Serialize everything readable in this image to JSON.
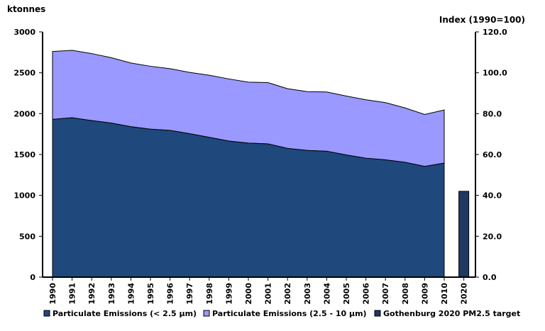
{
  "chart_data": {
    "type": "area",
    "left_axis_unit": "ktonnes",
    "right_axis_unit": "Index (1990=100)",
    "left_ylim": [
      0,
      3000
    ],
    "left_ticks": [
      "0",
      "500",
      "1000",
      "1500",
      "2000",
      "2500",
      "3000"
    ],
    "right_ylim": [
      0,
      120
    ],
    "right_ticks": [
      "0.0",
      "20.0",
      "40.0",
      "60.0",
      "80.0",
      "100.0",
      "120.0"
    ],
    "x": [
      "1990",
      "1991",
      "1992",
      "1993",
      "1994",
      "1995",
      "1996",
      "1997",
      "1998",
      "1999",
      "2000",
      "2001",
      "2002",
      "2003",
      "2004",
      "2005",
      "2006",
      "2007",
      "2008",
      "2009",
      "2010",
      "2020"
    ],
    "grid": false,
    "legend_position": "bottom",
    "series": [
      {
        "name": "Particulate Emissions (< 2.5 µm)",
        "color": "#1f497d",
        "x": [
          "1990",
          "1991",
          "1992",
          "1993",
          "1994",
          "1995",
          "1996",
          "1997",
          "1998",
          "1999",
          "2000",
          "2001",
          "2002",
          "2003",
          "2004",
          "2005",
          "2006",
          "2007",
          "2008",
          "2009",
          "2010"
        ],
        "values": [
          1930,
          1950,
          1915,
          1885,
          1840,
          1810,
          1795,
          1755,
          1710,
          1665,
          1640,
          1630,
          1575,
          1550,
          1540,
          1495,
          1455,
          1435,
          1405,
          1355,
          1395
        ]
      },
      {
        "name": "Particulate Emissions (2.5 - 10 µm)",
        "color": "#9999ff",
        "x": [
          "1990",
          "1991",
          "1992",
          "1993",
          "1994",
          "1995",
          "1996",
          "1997",
          "1998",
          "1999",
          "2000",
          "2001",
          "2002",
          "2003",
          "2004",
          "2005",
          "2006",
          "2007",
          "2008",
          "2009",
          "2010"
        ],
        "values": [
          830,
          825,
          820,
          800,
          780,
          770,
          755,
          750,
          760,
          760,
          745,
          750,
          730,
          720,
          725,
          720,
          715,
          700,
          665,
          635,
          650
        ]
      },
      {
        "name": "Gothenburg 2020 PM2.5 target",
        "color": "#1f3864",
        "axis": "right",
        "x": [
          "2020"
        ],
        "values": [
          42
        ]
      }
    ]
  }
}
